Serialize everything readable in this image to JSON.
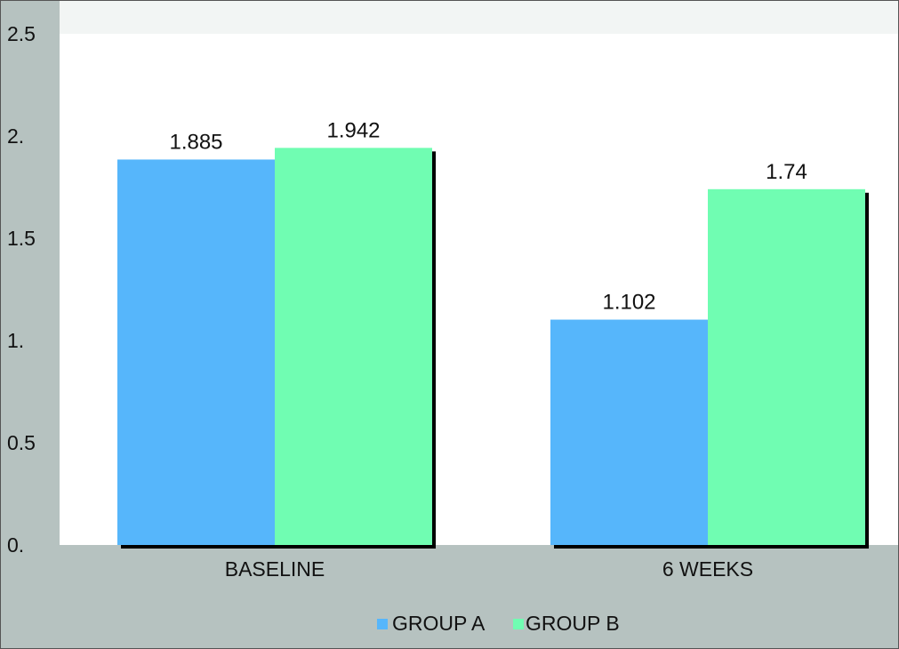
{
  "chart_data": {
    "type": "bar",
    "title": "",
    "xlabel": "",
    "ylabel": "",
    "categories": [
      "BASELINE",
      "6 WEEKS"
    ],
    "series": [
      {
        "name": "GROUP A",
        "color": "#56b6fb",
        "values": [
          1.885,
          1.102
        ],
        "labels": [
          "1.885",
          "1.102"
        ]
      },
      {
        "name": "GROUP B",
        "color": "#70fdb2",
        "values": [
          1.942,
          1.74
        ],
        "labels": [
          "1.942",
          "1.74"
        ]
      }
    ],
    "ylim": [
      0,
      2.5
    ],
    "yticks": [
      {
        "value": 0,
        "label": "0."
      },
      {
        "value": 0.5,
        "label": "0.5"
      },
      {
        "value": 1,
        "label": "1."
      },
      {
        "value": 1.5,
        "label": "1.5"
      },
      {
        "value": 2,
        "label": "2."
      },
      {
        "value": 2.5,
        "label": "2.5"
      }
    ],
    "legend_position": "bottom-center",
    "grid": false,
    "colors": {
      "background": "#b6c2c0",
      "plot_area": "#ffffff",
      "plot_top_band": "#f2f5f4",
      "shadow": "#000000",
      "border": "#555555"
    }
  }
}
